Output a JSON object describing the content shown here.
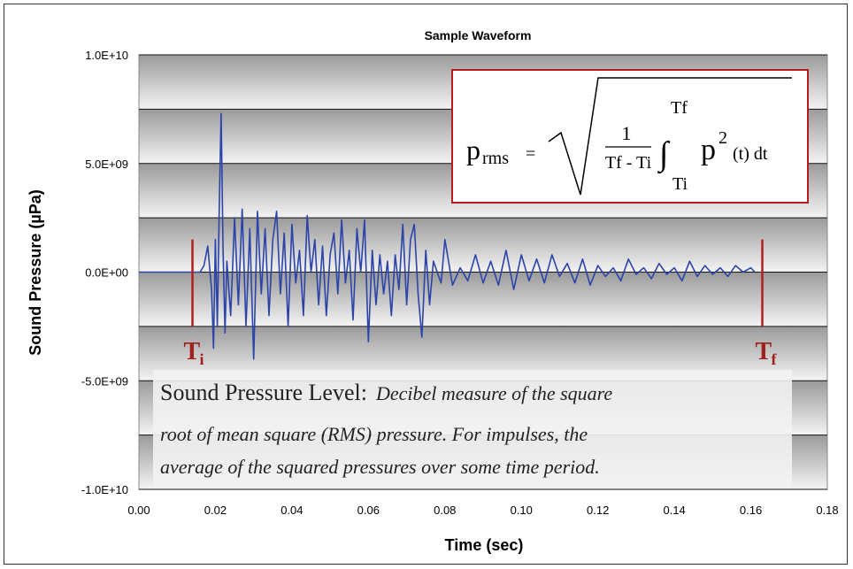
{
  "chart_data": {
    "type": "line",
    "title": "Sample Waveform",
    "xlabel": "Time (sec)",
    "ylabel": "Sound Pressure (µPa)",
    "xlim": [
      0,
      0.18
    ],
    "ylim": [
      -10000000000,
      10000000000
    ],
    "x_ticks": [
      "0.00",
      "0.02",
      "0.04",
      "0.06",
      "0.08",
      "0.10",
      "0.12",
      "0.14",
      "0.16",
      "0.18"
    ],
    "y_ticks": [
      "1.0E+10",
      "5.0E+09",
      "0.0E+00",
      "-5.0E+09",
      "-1.0E+10"
    ],
    "grid": true,
    "series": [
      {
        "color": "#2c44a8",
        "x": [
          0.0,
          0.014,
          0.016,
          0.017,
          0.018,
          0.019,
          0.0195,
          0.02,
          0.0205,
          0.021,
          0.0215,
          0.022,
          0.0225,
          0.023,
          0.024,
          0.025,
          0.026,
          0.027,
          0.028,
          0.029,
          0.03,
          0.031,
          0.032,
          0.033,
          0.034,
          0.035,
          0.036,
          0.037,
          0.038,
          0.039,
          0.04,
          0.041,
          0.042,
          0.043,
          0.044,
          0.045,
          0.046,
          0.047,
          0.048,
          0.049,
          0.05,
          0.051,
          0.052,
          0.053,
          0.054,
          0.055,
          0.056,
          0.057,
          0.058,
          0.059,
          0.06,
          0.061,
          0.062,
          0.063,
          0.064,
          0.065,
          0.066,
          0.067,
          0.068,
          0.069,
          0.07,
          0.071,
          0.072,
          0.073,
          0.074,
          0.075,
          0.076,
          0.077,
          0.078,
          0.079,
          0.08,
          0.082,
          0.084,
          0.086,
          0.088,
          0.09,
          0.092,
          0.094,
          0.096,
          0.098,
          0.1,
          0.102,
          0.104,
          0.106,
          0.108,
          0.11,
          0.112,
          0.114,
          0.116,
          0.118,
          0.12,
          0.122,
          0.124,
          0.126,
          0.128,
          0.13,
          0.132,
          0.134,
          0.136,
          0.138,
          0.14,
          0.142,
          0.144,
          0.146,
          0.148,
          0.15,
          0.152,
          0.154,
          0.156,
          0.158,
          0.16,
          0.161
        ],
        "y": [
          0.0,
          0.0,
          0.0,
          300000000.0,
          1200000000.0,
          -800000000.0,
          -3500000000.0,
          1500000000.0,
          -2500000000.0,
          3000000000.0,
          7300000000.0,
          1000000000.0,
          -2800000000.0,
          500000000.0,
          -2000000000.0,
          2500000000.0,
          -1500000000.0,
          2900000000.0,
          -2500000000.0,
          2000000000.0,
          -4000000000.0,
          2800000000.0,
          -1000000000.0,
          2000000000.0,
          -2000000000.0,
          1500000000.0,
          2800000000.0,
          -1000000000.0,
          1800000000.0,
          -2500000000.0,
          2200000000.0,
          -500000000.0,
          1000000000.0,
          -2000000000.0,
          2600000000.0,
          0.0,
          1500000000.0,
          -1500000000.0,
          1200000000.0,
          -2000000000.0,
          800000000.0,
          1800000000.0,
          -1000000000.0,
          2400000000.0,
          -500000000.0,
          1000000000.0,
          -2200000000.0,
          2000000000.0,
          0.0,
          2400000000.0,
          -3200000000.0,
          1000000000.0,
          -1500000000.0,
          800000000.0,
          -1000000000.0,
          500000000.0,
          -2000000000.0,
          800000000.0,
          -800000000.0,
          2200000000.0,
          -1500000000.0,
          1500000000.0,
          2200000000.0,
          -1000000000.0,
          -3000000000.0,
          1000000000.0,
          -1500000000.0,
          500000000.0,
          0.0,
          -500000000.0,
          1500000000.0,
          -600000000.0,
          200000000.0,
          -400000000.0,
          800000000.0,
          -500000000.0,
          500000000.0,
          -600000000.0,
          1000000000.0,
          -800000000.0,
          800000000.0,
          -400000000.0,
          600000000.0,
          -500000000.0,
          800000000.0,
          -200000000.0,
          400000000.0,
          -500000000.0,
          600000000.0,
          -600000000.0,
          300000000.0,
          -200000000.0,
          200000000.0,
          -400000000.0,
          600000000.0,
          -100000000.0,
          200000000.0,
          -300000000.0,
          400000000.0,
          -100000000.0,
          200000000.0,
          -400000000.0,
          500000000.0,
          -200000000.0,
          300000000.0,
          -100000000.0,
          200000000.0,
          -200000000.0,
          300000000.0,
          0.0,
          200000000.0,
          0.0
        ]
      }
    ]
  },
  "markers": {
    "ti": {
      "x": 0.014,
      "main": "T",
      "sub": "i",
      "color": "#b51d1d"
    },
    "tf": {
      "x": 0.163,
      "main": "T",
      "sub": "f",
      "color": "#b51d1d"
    }
  },
  "formula": {
    "lhs": "p",
    "lhs_sub": "rms",
    "equals": "=",
    "numerator": "1",
    "denominator": "Tf - Ti",
    "upper_limit": "Tf",
    "lower_limit": "Ti",
    "integrand": "p",
    "integrand_exp": "2",
    "integrand_rest": "(t) dt"
  },
  "note": {
    "lead": "Sound Pressure Level:",
    "line1": "Decibel measure of the square",
    "line2": "root of mean square (RMS) pressure. For impulses, the",
    "line3": "average of the squared pressures over some time period."
  }
}
